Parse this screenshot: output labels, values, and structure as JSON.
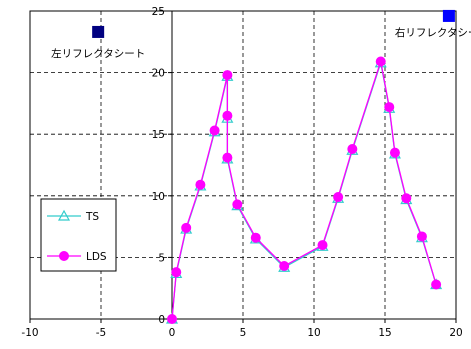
{
  "chart_data": {
    "type": "line",
    "title": "",
    "xlabel": "",
    "ylabel": "",
    "xlim": [
      -10,
      20
    ],
    "ylim": [
      0,
      25
    ],
    "xticks": [
      -10,
      -5,
      0,
      5,
      10,
      15,
      20
    ],
    "yticks": [
      0,
      5,
      10,
      15,
      20,
      25
    ],
    "grid": true,
    "legend_position": "bottom-left",
    "series": [
      {
        "name": "TS",
        "color": "#33cccc",
        "marker": "triangle-open",
        "points": [
          [
            0,
            0
          ],
          [
            0.3,
            3.7
          ],
          [
            1,
            7.3
          ],
          [
            2,
            10.8
          ],
          [
            3,
            15.2
          ],
          [
            3.9,
            19.7
          ],
          [
            3.9,
            16.3
          ],
          [
            3.9,
            13.0
          ],
          [
            4.6,
            9.2
          ],
          [
            5.9,
            6.5
          ],
          [
            7.9,
            4.2
          ],
          [
            10.6,
            5.9
          ],
          [
            11.7,
            9.8
          ],
          [
            12.7,
            13.7
          ],
          [
            14.7,
            20.8
          ],
          [
            15.3,
            17.1
          ],
          [
            15.7,
            13.4
          ],
          [
            16.5,
            9.7
          ],
          [
            17.6,
            6.6
          ],
          [
            18.6,
            2.8
          ]
        ]
      },
      {
        "name": "LDS",
        "color": "#ff00ff",
        "marker": "circle",
        "points": [
          [
            0,
            0
          ],
          [
            0.3,
            3.8
          ],
          [
            1,
            7.4
          ],
          [
            2,
            10.9
          ],
          [
            3,
            15.3
          ],
          [
            3.9,
            19.8
          ],
          [
            3.9,
            16.5
          ],
          [
            3.9,
            13.1
          ],
          [
            4.6,
            9.3
          ],
          [
            5.9,
            6.6
          ],
          [
            7.9,
            4.3
          ],
          [
            10.6,
            6.0
          ],
          [
            11.7,
            9.9
          ],
          [
            12.7,
            13.8
          ],
          [
            14.7,
            20.9
          ],
          [
            15.3,
            17.2
          ],
          [
            15.7,
            13.5
          ],
          [
            16.5,
            9.8
          ],
          [
            17.6,
            6.7
          ],
          [
            18.6,
            2.8
          ]
        ]
      }
    ],
    "annotations": [
      {
        "text": "左リフレクタシート",
        "marker_x": -5.2,
        "marker_y": 23.3,
        "marker_color": "#000080"
      },
      {
        "text": "右リフレクタシート",
        "marker_x": 19.5,
        "marker_y": 24.6,
        "marker_color": "#0000ff"
      }
    ]
  }
}
